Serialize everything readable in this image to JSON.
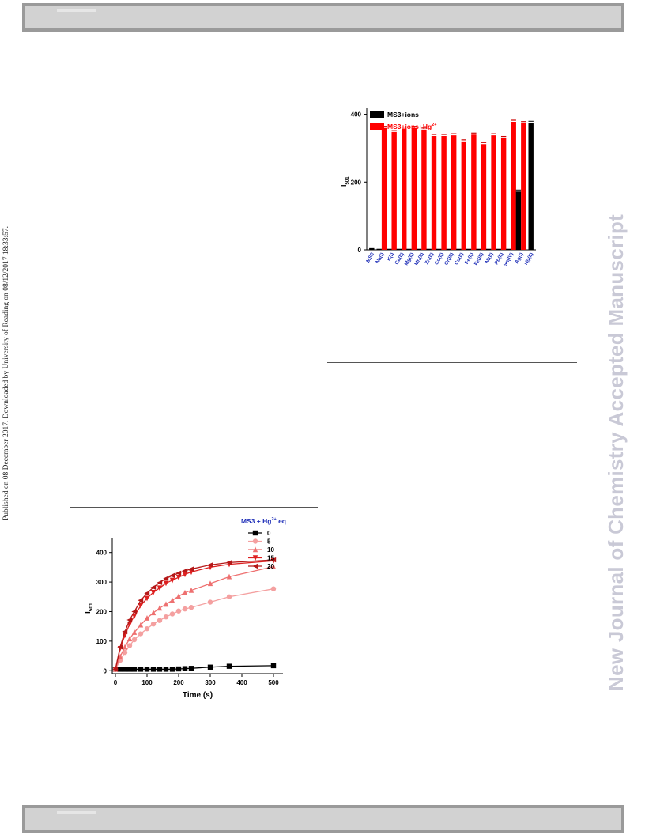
{
  "page": {
    "published_notice": "Published on 08 December 2017. Downloaded by University of Reading on 08/12/2017 18:33:57.",
    "watermark": "New Journal of Chemistry Accepted Manuscript"
  },
  "chart_data": [
    {
      "type": "bar",
      "title": "",
      "xlabel": "",
      "ylabel": "I501",
      "ylabel_main": "I",
      "ylabel_sub": "501",
      "ylim": [
        0,
        420
      ],
      "yticks": [
        0,
        200,
        400
      ],
      "legend_placement": "top-left",
      "categories": [
        "MS3",
        "Na(I)",
        "K(I)",
        "Ca(II)",
        "Mg(II)",
        "Mn(II)",
        "Zn(II)",
        "Co(II)",
        "Cr(III)",
        "Cu(II)",
        "Fe(II)",
        "Fe(III)",
        "Ni(II)",
        "Pb(II)",
        "Sn(IV)",
        "Ag(I)",
        "Hg(II)"
      ],
      "series": [
        {
          "name": "MS3+ions",
          "legend_label": "MS3+ions",
          "color": "#000000",
          "values": [
            5,
            3,
            3,
            3,
            3,
            3,
            3,
            3,
            3,
            3,
            3,
            3,
            3,
            3,
            3,
            172,
            375
          ]
        },
        {
          "name": "MS3+ions+Hg2+",
          "legend_label": "MS3+ions+Hg",
          "legend_sup": "2+",
          "color": "#ff0000",
          "values": [
            null,
            360,
            348,
            358,
            360,
            355,
            336,
            336,
            338,
            320,
            340,
            312,
            338,
            330,
            378,
            374,
            null
          ]
        }
      ]
    },
    {
      "type": "line",
      "title": "",
      "xlabel": "Time (s)",
      "ylabel": "I501",
      "ylabel_main": "I",
      "ylabel_sub": "501",
      "xlim": [
        -10,
        530
      ],
      "ylim": [
        -10,
        450
      ],
      "xticks": [
        0,
        100,
        200,
        300,
        400,
        500
      ],
      "yticks": [
        0,
        100,
        200,
        300,
        400
      ],
      "legend_title_main": "MS3 + Hg",
      "legend_title_sup": "2+",
      "legend_title_tail": " eq",
      "legend_placement": "top-right",
      "x": [
        0,
        15,
        30,
        45,
        60,
        80,
        100,
        120,
        140,
        160,
        180,
        200,
        220,
        240,
        300,
        360,
        500
      ],
      "series": [
        {
          "name": "0",
          "color": "#000000",
          "marker": "square",
          "values": [
            5,
            5,
            5,
            5,
            5,
            5,
            5,
            5,
            5,
            5,
            5,
            6,
            7,
            8,
            12,
            15,
            17
          ]
        },
        {
          "name": "5",
          "color": "#f4a0a0",
          "marker": "circle",
          "values": [
            5,
            35,
            62,
            85,
            105,
            125,
            142,
            158,
            170,
            182,
            192,
            202,
            209,
            214,
            232,
            250,
            277
          ]
        },
        {
          "name": "10",
          "color": "#ee7070",
          "marker": "triangle-up",
          "values": [
            5,
            48,
            80,
            108,
            130,
            155,
            178,
            196,
            212,
            225,
            238,
            252,
            264,
            272,
            295,
            318,
            352
          ]
        },
        {
          "name": "15",
          "color": "#dd2020",
          "marker": "triangle-down",
          "values": [
            5,
            75,
            120,
            158,
            185,
            220,
            245,
            265,
            280,
            296,
            306,
            316,
            326,
            334,
            350,
            360,
            372
          ]
        },
        {
          "name": "20",
          "color": "#b51818",
          "marker": "triangle-left",
          "values": [
            5,
            80,
            132,
            172,
            200,
            238,
            262,
            282,
            298,
            312,
            322,
            330,
            338,
            344,
            358,
            366,
            375
          ]
        }
      ]
    }
  ]
}
